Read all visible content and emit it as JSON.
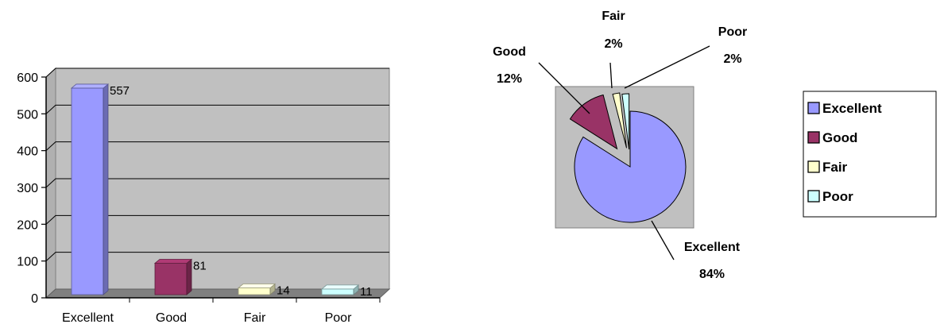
{
  "chart_data": [
    {
      "type": "bar",
      "categories": [
        "Excellent",
        "Good",
        "Fair",
        "Poor"
      ],
      "values": [
        557,
        81,
        14,
        11
      ],
      "data_labels": [
        "557",
        "81",
        "14",
        "11"
      ],
      "ylim": [
        0,
        600
      ],
      "yticks": [
        "0",
        "100",
        "200",
        "300",
        "400",
        "500",
        "600"
      ],
      "grid": true,
      "colors": [
        "#9999ff",
        "#993366",
        "#ffffcc",
        "#ccffff"
      ]
    },
    {
      "type": "pie",
      "categories": [
        "Excellent",
        "Good",
        "Fair",
        "Poor"
      ],
      "values": [
        84,
        12,
        2,
        2
      ],
      "labels": [
        {
          "name": "Excellent",
          "pct": "84%"
        },
        {
          "name": "Good",
          "pct": "12%"
        },
        {
          "name": "Fair",
          "pct": "2%"
        },
        {
          "name": "Poor",
          "pct": "2%"
        }
      ],
      "legend": {
        "position": "right",
        "entries": [
          "Excellent",
          "Good",
          "Fair",
          "Poor"
        ]
      },
      "colors": [
        "#9999ff",
        "#993366",
        "#ffffcc",
        "#ccffff"
      ]
    }
  ]
}
